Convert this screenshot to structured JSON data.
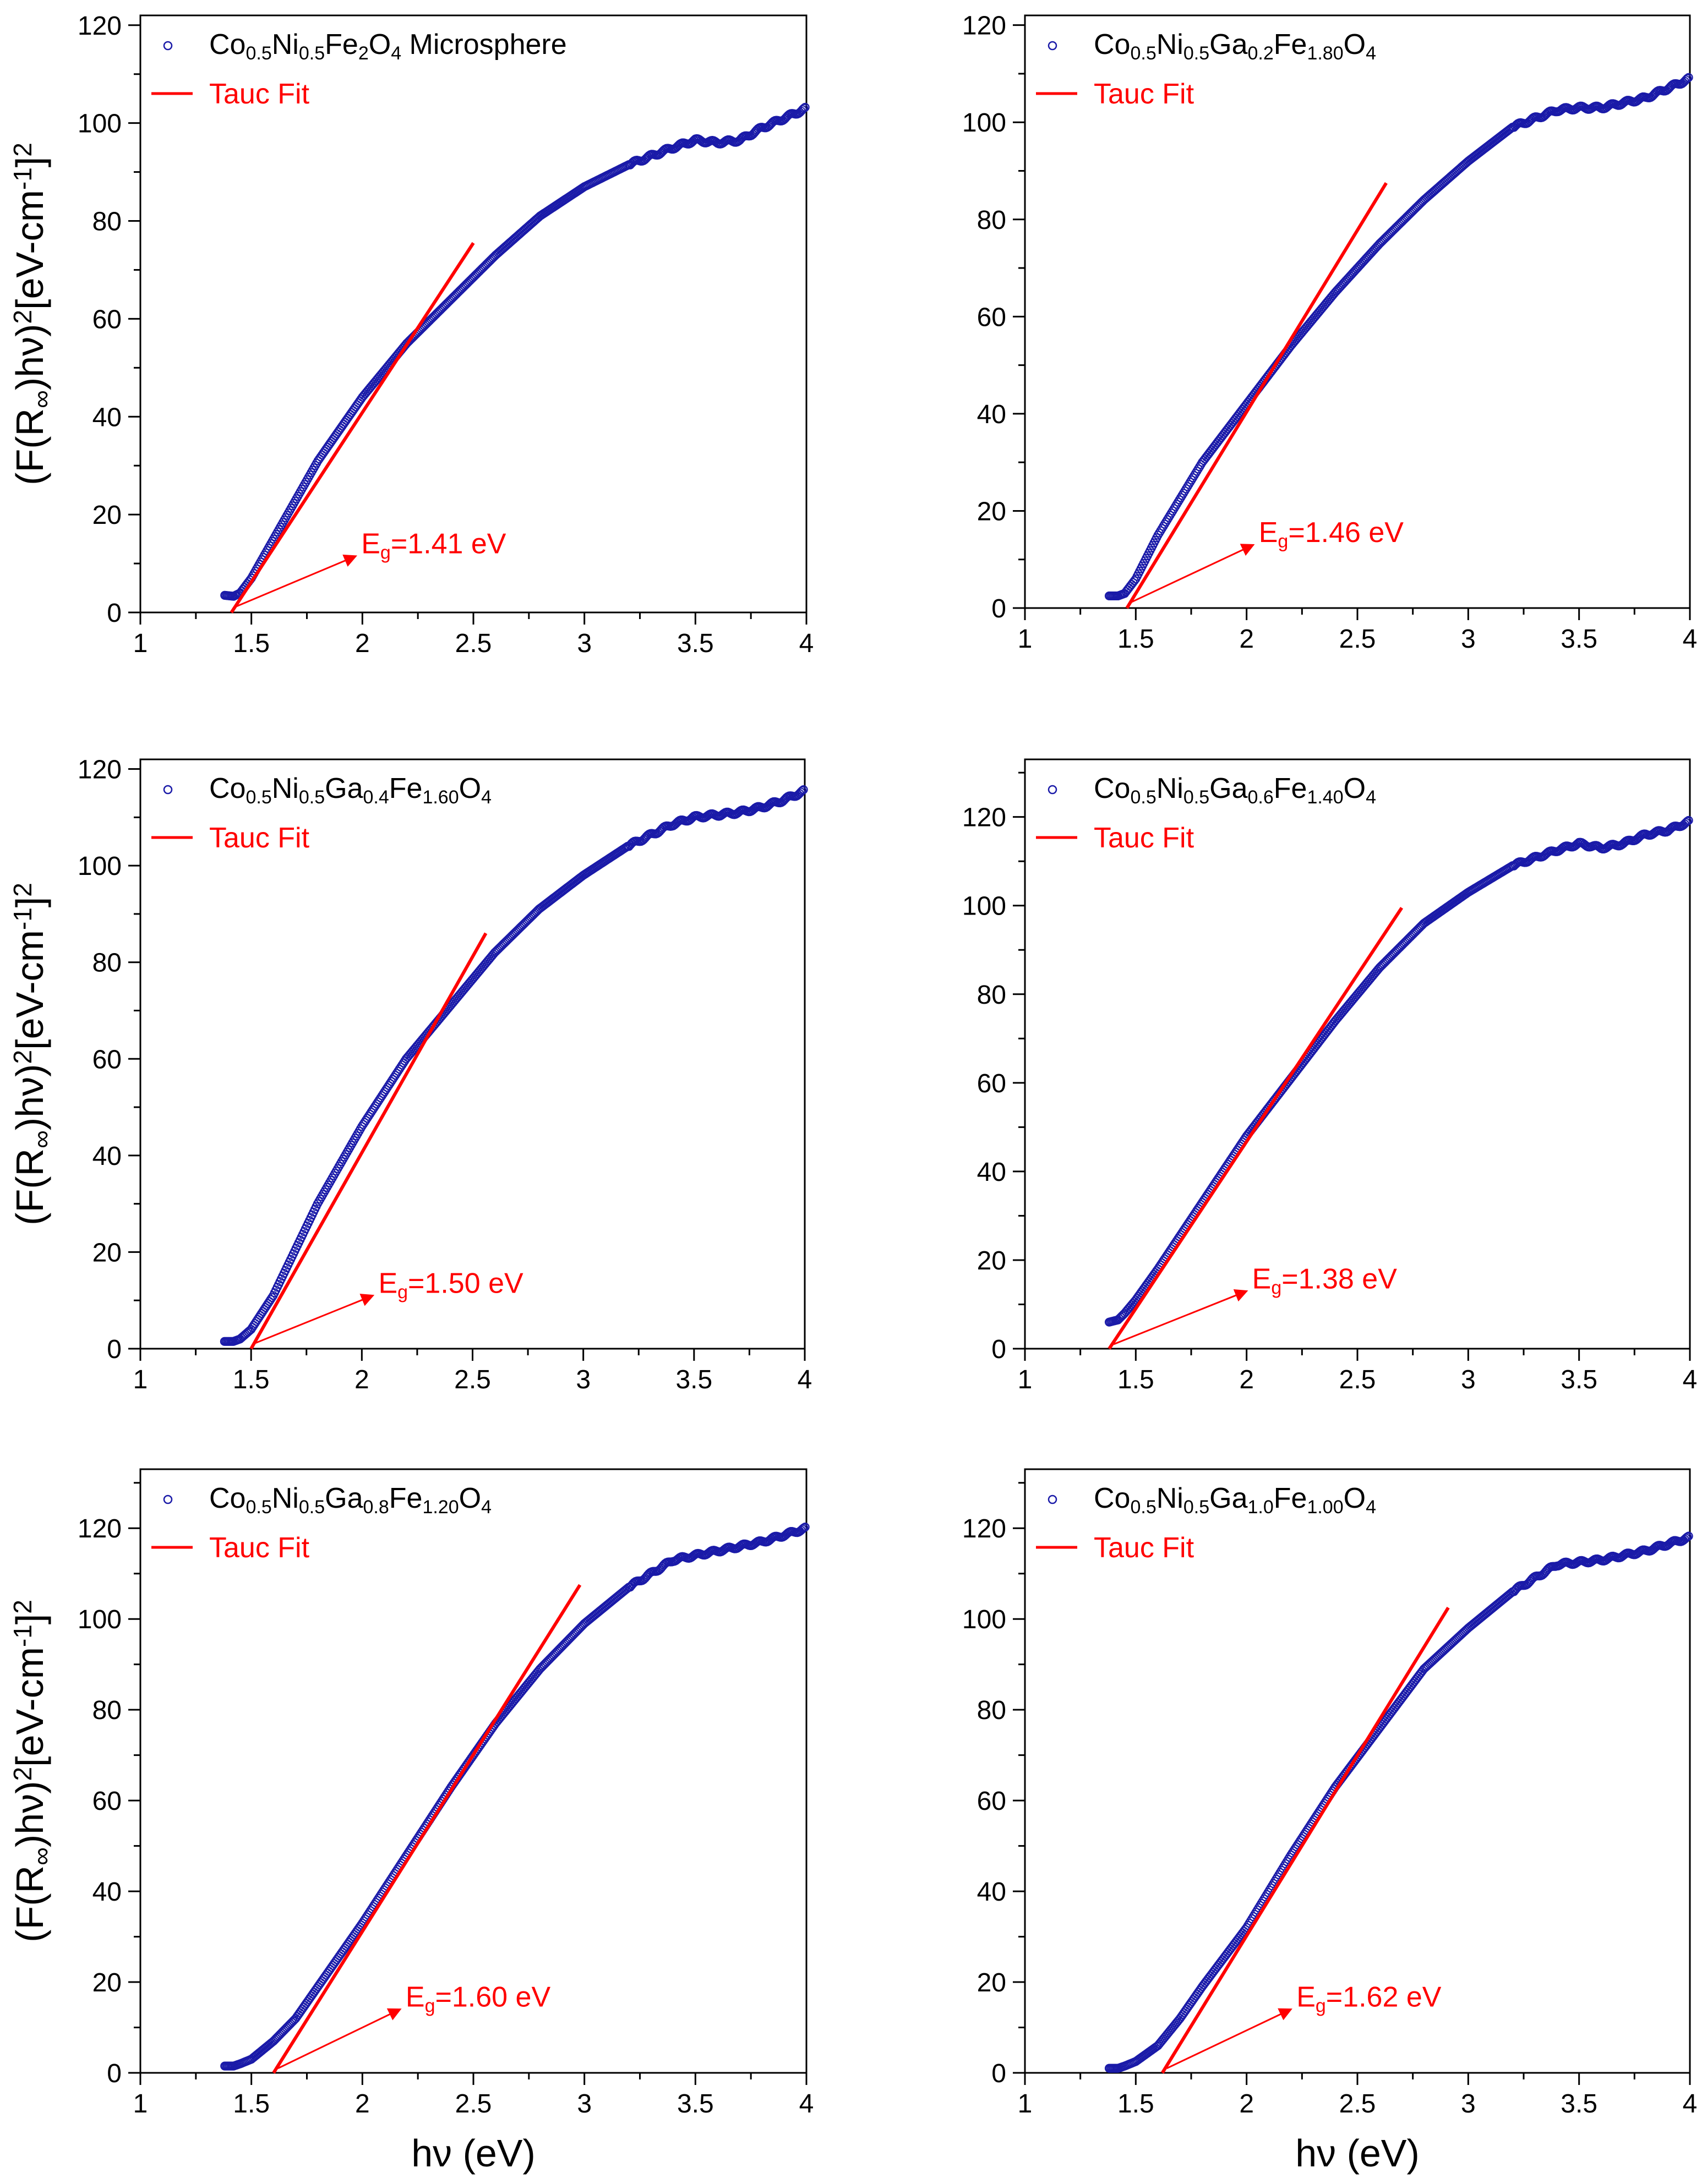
{
  "colors": {
    "data": "#1a1aa8",
    "fit": "#ff0000",
    "axis": "#000000"
  },
  "chart_data": [
    {
      "type": "scatter",
      "legend": {
        "formula": [
          [
            "Co",
            ""
          ],
          [
            "0.5",
            "sub"
          ],
          [
            "Ni",
            ""
          ],
          [
            "0.5",
            "sub"
          ],
          [
            "Fe",
            ""
          ],
          [
            "2",
            "sub"
          ],
          [
            "O",
            ""
          ],
          [
            "4",
            "sub"
          ],
          [
            " Microsphere",
            ""
          ]
        ],
        "fit_label": "Tauc Fit"
      },
      "xlabel": "",
      "ylabel_parts": [
        [
          "(F(R",
          ""
        ],
        [
          "∞",
          "sub"
        ],
        [
          ")hν)",
          ""
        ],
        [
          "2",
          "sup"
        ],
        [
          "[eV-cm",
          ""
        ],
        [
          "-1",
          "sup"
        ],
        [
          "]",
          ""
        ],
        [
          "2",
          "sup"
        ]
      ],
      "xlim": [
        1,
        4
      ],
      "ylim": [
        0,
        122
      ],
      "xticks": [
        1,
        1.5,
        2,
        2.5,
        3,
        3.5,
        4
      ],
      "xtick_labels": [
        "1",
        "1.5",
        "2",
        "2.5",
        "3",
        "3.5",
        "4"
      ],
      "yticks": [
        0,
        20,
        40,
        60,
        80,
        100,
        120
      ],
      "ytick_labels": [
        "0",
        "20",
        "40",
        "60",
        "80",
        "100",
        "120"
      ],
      "series": [
        {
          "name": "data",
          "x": [
            1.38,
            1.42,
            1.45,
            1.5,
            1.6,
            1.8,
            2.0,
            2.2,
            2.4,
            2.6,
            2.7,
            2.8,
            3.0,
            3.2,
            3.4,
            3.5,
            3.6,
            3.7,
            3.8,
            3.9,
            4.0
          ],
          "y": [
            3.5,
            3.3,
            4,
            7,
            15,
            31,
            44,
            55,
            64,
            73,
            77,
            81,
            87,
            91.5,
            95,
            96.5,
            96,
            96.5,
            99,
            101,
            103
          ]
        }
      ],
      "fit": {
        "x": [
          1.41,
          2.5
        ],
        "y": [
          0,
          75.5
        ]
      },
      "annotation": {
        "label": [
          [
            "E",
            ""
          ],
          [
            "g",
            "sub"
          ],
          [
            "=1.41 eV",
            ""
          ]
        ],
        "arrow_from": [
          1.42,
          1.0
        ],
        "arrow_to": [
          1.97,
          11.5
        ]
      }
    },
    {
      "type": "scatter",
      "legend": {
        "formula": [
          [
            "Co",
            ""
          ],
          [
            "0.5",
            "sub"
          ],
          [
            "Ni",
            ""
          ],
          [
            "0.5",
            "sub"
          ],
          [
            "Ga",
            ""
          ],
          [
            "0.2",
            "sub"
          ],
          [
            "Fe",
            ""
          ],
          [
            "1.80",
            "sub"
          ],
          [
            "O",
            ""
          ],
          [
            "4",
            "sub"
          ]
        ],
        "fit_label": "Tauc Fit"
      },
      "xlabel": "",
      "ylabel_parts": [],
      "xlim": [
        1,
        4
      ],
      "ylim": [
        0,
        122
      ],
      "xticks": [
        1,
        1.5,
        2,
        2.5,
        3,
        3.5,
        4
      ],
      "xtick_labels": [
        "1",
        "1.5",
        "2",
        "2.5",
        "3",
        "3.5",
        "4"
      ],
      "yticks": [
        0,
        20,
        40,
        60,
        80,
        100,
        120
      ],
      "ytick_labels": [
        "0",
        "20",
        "40",
        "60",
        "80",
        "100",
        "120"
      ],
      "series": [
        {
          "name": "data",
          "x": [
            1.38,
            1.42,
            1.45,
            1.5,
            1.6,
            1.8,
            2.0,
            2.2,
            2.4,
            2.6,
            2.8,
            3.0,
            3.2,
            3.4,
            3.5,
            3.6,
            3.7,
            3.8,
            3.9,
            4.0
          ],
          "y": [
            2.5,
            2.5,
            3,
            6,
            15,
            30,
            42,
            54,
            65,
            75,
            84,
            92,
            99,
            102.5,
            103,
            103,
            104,
            105,
            107,
            109
          ]
        }
      ],
      "fit": {
        "x": [
          1.46,
          2.63
        ],
        "y": [
          0,
          87.5
        ]
      },
      "annotation": {
        "label": [
          [
            "E",
            ""
          ],
          [
            "g",
            "sub"
          ],
          [
            "=1.46 eV",
            ""
          ]
        ],
        "arrow_from": [
          1.47,
          1.0
        ],
        "arrow_to": [
          2.03,
          13
        ]
      }
    },
    {
      "type": "scatter",
      "legend": {
        "formula": [
          [
            "Co",
            ""
          ],
          [
            "0.5",
            "sub"
          ],
          [
            "Ni",
            ""
          ],
          [
            "0.5",
            "sub"
          ],
          [
            "Ga",
            ""
          ],
          [
            "0.4",
            "sub"
          ],
          [
            "Fe",
            ""
          ],
          [
            "1.60",
            "sub"
          ],
          [
            "O",
            ""
          ],
          [
            "4",
            "sub"
          ]
        ],
        "fit_label": "Tauc Fit"
      },
      "xlabel": "",
      "ylabel_parts": [
        [
          "(F(R",
          ""
        ],
        [
          "∞",
          "sub"
        ],
        [
          ")hν)",
          ""
        ],
        [
          "2",
          "sup"
        ],
        [
          "[eV-cm",
          ""
        ],
        [
          "-1",
          "sup"
        ],
        [
          "]",
          ""
        ],
        [
          "2",
          "sup"
        ]
      ],
      "xlim": [
        1,
        4
      ],
      "ylim": [
        0,
        122
      ],
      "xticks": [
        1,
        1.5,
        2,
        2.5,
        3,
        3.5,
        4
      ],
      "xtick_labels": [
        "1",
        "1.5",
        "2",
        "2.5",
        "3",
        "3.5",
        "4"
      ],
      "yticks": [
        0,
        20,
        40,
        60,
        80,
        100,
        120
      ],
      "ytick_labels": [
        "0",
        "20",
        "40",
        "60",
        "80",
        "100",
        "120"
      ],
      "series": [
        {
          "name": "data",
          "x": [
            1.38,
            1.42,
            1.45,
            1.5,
            1.6,
            1.8,
            2.0,
            2.2,
            2.4,
            2.6,
            2.8,
            3.0,
            3.2,
            3.4,
            3.5,
            3.6,
            3.7,
            3.8,
            3.9,
            4.0
          ],
          "y": [
            1.5,
            1.5,
            2,
            4,
            11,
            30,
            46,
            60,
            71,
            82,
            91,
            98,
            104,
            108.5,
            110,
            110.5,
            111,
            112,
            113.5,
            115.5
          ]
        }
      ],
      "fit": {
        "x": [
          1.5,
          2.56
        ],
        "y": [
          0,
          86
        ]
      },
      "annotation": {
        "label": [
          [
            "E",
            ""
          ],
          [
            "g",
            "sub"
          ],
          [
            "=1.50 eV",
            ""
          ]
        ],
        "arrow_from": [
          1.51,
          1.0
        ],
        "arrow_to": [
          2.05,
          11
        ]
      }
    },
    {
      "type": "scatter",
      "legend": {
        "formula": [
          [
            "Co",
            ""
          ],
          [
            "0.5",
            "sub"
          ],
          [
            "Ni",
            ""
          ],
          [
            "0.5",
            "sub"
          ],
          [
            "Ga",
            ""
          ],
          [
            "0.6",
            "sub"
          ],
          [
            "Fe",
            ""
          ],
          [
            "1.40",
            "sub"
          ],
          [
            "O",
            ""
          ],
          [
            "4",
            "sub"
          ]
        ],
        "fit_label": "Tauc Fit"
      },
      "xlabel": "",
      "ylabel_parts": [],
      "xlim": [
        1,
        4
      ],
      "ylim": [
        0,
        133
      ],
      "xticks": [
        1,
        1.5,
        2,
        2.5,
        3,
        3.5,
        4
      ],
      "xtick_labels": [
        "1",
        "1.5",
        "2",
        "2.5",
        "3",
        "3.5",
        "4"
      ],
      "yticks": [
        0,
        20,
        40,
        60,
        80,
        100,
        120
      ],
      "ytick_labels": [
        "0",
        "20",
        "40",
        "60",
        "80",
        "100",
        "120"
      ],
      "series": [
        {
          "name": "data",
          "x": [
            1.38,
            1.42,
            1.45,
            1.5,
            1.6,
            1.8,
            2.0,
            2.2,
            2.4,
            2.6,
            2.8,
            3.0,
            3.2,
            3.4,
            3.5,
            3.6,
            3.7,
            3.8,
            3.9,
            4.0
          ],
          "y": [
            6,
            6.5,
            8,
            11,
            18,
            33,
            48,
            61,
            74,
            86,
            96,
            103,
            109,
            112.5,
            114,
            113,
            114,
            116,
            117,
            119
          ]
        }
      ],
      "fit": {
        "x": [
          1.38,
          2.7
        ],
        "y": [
          0,
          99.5
        ]
      },
      "annotation": {
        "label": [
          [
            "E",
            ""
          ],
          [
            "g",
            "sub"
          ],
          [
            "=1.38 eV",
            ""
          ]
        ],
        "arrow_from": [
          1.4,
          1.0
        ],
        "arrow_to": [
          2.0,
          13
        ]
      }
    },
    {
      "type": "scatter",
      "legend": {
        "formula": [
          [
            "Co",
            ""
          ],
          [
            "0.5",
            "sub"
          ],
          [
            "Ni",
            ""
          ],
          [
            "0.5",
            "sub"
          ],
          [
            "Ga",
            ""
          ],
          [
            "0.8",
            "sub"
          ],
          [
            "Fe",
            ""
          ],
          [
            "1.20",
            "sub"
          ],
          [
            "O",
            ""
          ],
          [
            "4",
            "sub"
          ]
        ],
        "fit_label": "Tauc Fit"
      },
      "xlabel": "hν (eV)",
      "ylabel_parts": [
        [
          "(F(R",
          ""
        ],
        [
          "∞",
          "sub"
        ],
        [
          ")hν)",
          ""
        ],
        [
          "2",
          "sup"
        ],
        [
          "[eV-cm",
          ""
        ],
        [
          "-1",
          "sup"
        ],
        [
          "]",
          ""
        ],
        [
          "2",
          "sup"
        ]
      ],
      "xlim": [
        1,
        4
      ],
      "ylim": [
        0,
        133
      ],
      "xticks": [
        1,
        1.5,
        2,
        2.5,
        3,
        3.5,
        4
      ],
      "xtick_labels": [
        "1",
        "1.5",
        "2",
        "2.5",
        "3",
        "3.5",
        "4"
      ],
      "yticks": [
        0,
        20,
        40,
        60,
        80,
        100,
        120
      ],
      "ytick_labels": [
        "0",
        "20",
        "40",
        "60",
        "80",
        "100",
        "120"
      ],
      "series": [
        {
          "name": "data",
          "x": [
            1.38,
            1.42,
            1.45,
            1.5,
            1.6,
            1.7,
            1.8,
            2.0,
            2.2,
            2.4,
            2.6,
            2.8,
            3.0,
            3.2,
            3.4,
            3.5,
            3.6,
            3.7,
            3.8,
            3.9,
            4.0
          ],
          "y": [
            1.5,
            1.5,
            2,
            3,
            7,
            12,
            19,
            33,
            48,
            63,
            77,
            89,
            99,
            107,
            113,
            114,
            115,
            116,
            117,
            118.5,
            120
          ]
        }
      ],
      "fit": {
        "x": [
          1.6,
          2.98
        ],
        "y": [
          0,
          107.5
        ]
      },
      "annotation": {
        "label": [
          [
            "E",
            ""
          ],
          [
            "g",
            "sub"
          ],
          [
            "=1.60 eV",
            ""
          ]
        ],
        "arrow_from": [
          1.62,
          1.0
        ],
        "arrow_to": [
          2.17,
          14
        ]
      }
    },
    {
      "type": "scatter",
      "legend": {
        "formula": [
          [
            "Co",
            ""
          ],
          [
            "0.5",
            "sub"
          ],
          [
            "Ni",
            ""
          ],
          [
            "0.5",
            "sub"
          ],
          [
            "Ga",
            ""
          ],
          [
            "1.0",
            "sub"
          ],
          [
            "Fe",
            ""
          ],
          [
            "1.00",
            "sub"
          ],
          [
            "O",
            ""
          ],
          [
            "4",
            "sub"
          ]
        ],
        "fit_label": "Tauc Fit"
      },
      "xlabel": "hν (eV)",
      "ylabel_parts": [],
      "xlim": [
        1,
        4
      ],
      "ylim": [
        0,
        133
      ],
      "xticks": [
        1,
        1.5,
        2,
        2.5,
        3,
        3.5,
        4
      ],
      "xtick_labels": [
        "1",
        "1.5",
        "2",
        "2.5",
        "3",
        "3.5",
        "4"
      ],
      "yticks": [
        0,
        20,
        40,
        60,
        80,
        100,
        120
      ],
      "ytick_labels": [
        "0",
        "20",
        "40",
        "60",
        "80",
        "100",
        "120"
      ],
      "series": [
        {
          "name": "data",
          "x": [
            1.38,
            1.42,
            1.45,
            1.5,
            1.6,
            1.7,
            1.8,
            2.0,
            2.2,
            2.4,
            2.6,
            2.8,
            3.0,
            3.2,
            3.4,
            3.5,
            3.6,
            3.7,
            3.8,
            3.9,
            4.0
          ],
          "y": [
            1,
            1,
            1.5,
            2.5,
            6,
            12,
            19,
            32,
            48,
            63,
            76,
            89,
            98,
            106,
            112,
            112.5,
            113,
            114,
            115,
            116.5,
            118
          ]
        }
      ],
      "fit": {
        "x": [
          1.62,
          2.91
        ],
        "y": [
          0,
          102.5
        ]
      },
      "annotation": {
        "label": [
          [
            "E",
            ""
          ],
          [
            "g",
            "sub"
          ],
          [
            "=1.62 eV",
            ""
          ]
        ],
        "arrow_from": [
          1.64,
          1.0
        ],
        "arrow_to": [
          2.2,
          14
        ]
      }
    }
  ]
}
